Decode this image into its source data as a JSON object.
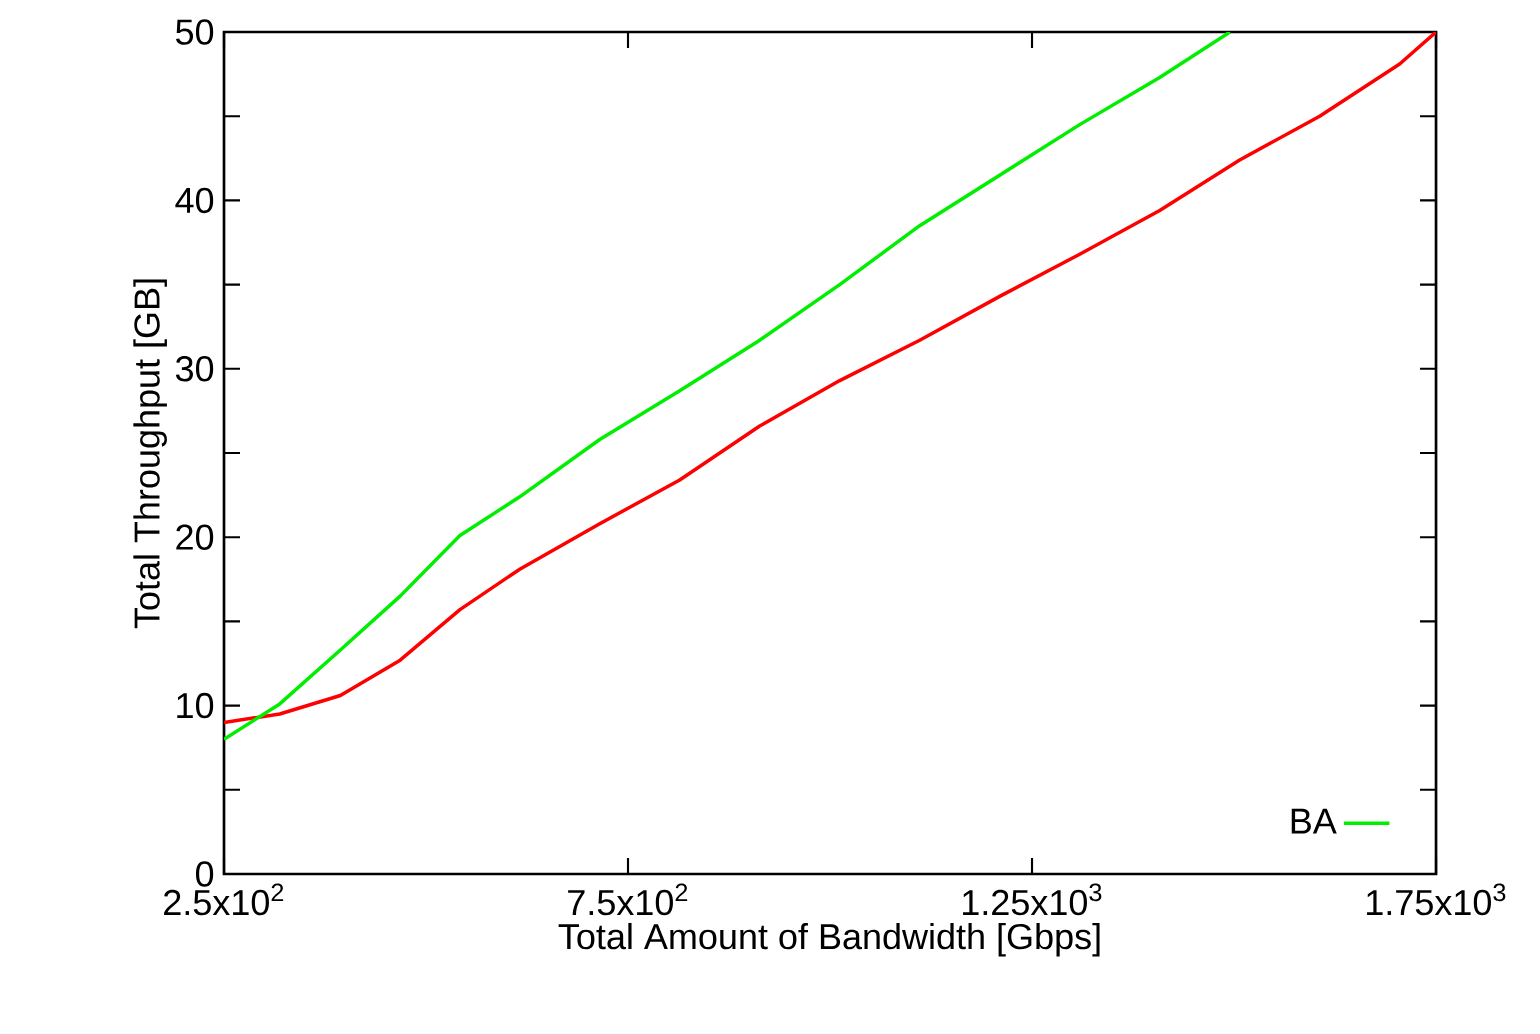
{
  "chart_data": {
    "type": "line",
    "xlabel": "Total Amount of Bandwidth [Gbps]",
    "ylabel": "Total Throughput [GB]",
    "xlim": [
      250,
      1750
    ],
    "ylim": [
      0,
      50
    ],
    "xticks": [
      {
        "value": 250,
        "label": "2.5x10$^{2}$"
      },
      {
        "value": 750,
        "label": "7.5x10$^{2}$"
      },
      {
        "value": 1250,
        "label": "1.25x10$^{3}$"
      },
      {
        "value": 1750,
        "label": "1.75x10$^{3}$"
      }
    ],
    "yticks": [
      0,
      {
        "value": 5,
        "label": null
      },
      10,
      {
        "value": 15,
        "label": null
      },
      20,
      {
        "value": 25,
        "label": null
      },
      30,
      {
        "value": 35,
        "label": null
      },
      40,
      {
        "value": 45,
        "label": null
      },
      50
    ],
    "legend": "bottom right",
    "series": [
      {
        "color": "#ff0000",
        "x": [
          250,
          319,
          394,
          468,
          542,
          616,
          715,
          814,
          913,
          1012,
          1111,
          1210,
          1309,
          1408,
          1507,
          1606,
          1705,
          1750
        ],
        "values": [
          9.0,
          9.5,
          10.6,
          12.7,
          15.7,
          18.1,
          20.8,
          23.4,
          26.6,
          29.3,
          31.7,
          34.3,
          36.8,
          39.4,
          42.4,
          45.0,
          48.1,
          50
        ]
      },
      {
        "name": "BA",
        "color": "#00ee00",
        "x": [
          250,
          319,
          394,
          468,
          542,
          616,
          715,
          814,
          913,
          1012,
          1111,
          1210,
          1309,
          1408,
          1495
        ],
        "values": [
          8.0,
          10.1,
          13.3,
          16.5,
          20.1,
          22.4,
          25.8,
          28.7,
          31.7,
          35.0,
          38.5,
          41.5,
          44.5,
          47.3,
          50
        ]
      }
    ]
  }
}
